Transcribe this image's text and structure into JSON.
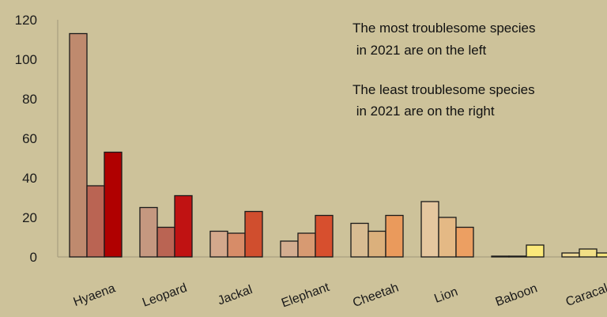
{
  "chart_data": {
    "type": "bar",
    "title": "",
    "xlabel": "",
    "ylabel": "",
    "ylim": [
      0,
      120
    ],
    "yticks": [
      0,
      20,
      40,
      60,
      80,
      100,
      120
    ],
    "grid": false,
    "legend": "none",
    "categories": [
      {
        "label": "Hyaena",
        "values": [
          113,
          36,
          53
        ],
        "colors": [
          "#bf8a6e",
          "#ba6453",
          "#b00000"
        ]
      },
      {
        "label": "Leopard",
        "values": [
          25,
          15,
          31
        ],
        "colors": [
          "#c59880",
          "#ba6453",
          "#c01212"
        ]
      },
      {
        "label": "Jackal",
        "values": [
          13,
          12,
          23
        ],
        "colors": [
          "#d3a88c",
          "#d78c68",
          "#d04e2e"
        ]
      },
      {
        "label": "Elephant",
        "values": [
          8,
          12,
          21
        ],
        "colors": [
          "#d3ad90",
          "#d79a72",
          "#d74f2e"
        ]
      },
      {
        "label": "Cheetah",
        "values": [
          17,
          13,
          21
        ],
        "colors": [
          "#d8bc92",
          "#dbb07c",
          "#ea9a5c"
        ]
      },
      {
        "label": "Lion",
        "values": [
          28,
          20,
          15
        ],
        "colors": [
          "#e5c79f",
          "#e4b985",
          "#ec9f62"
        ]
      },
      {
        "label": "Baboon",
        "values": [
          0,
          0,
          6
        ],
        "colors": [
          "#ebd59a",
          "#f0d67a",
          "#fbe97a"
        ]
      },
      {
        "label": "Caracal",
        "values": [
          2,
          4,
          2
        ],
        "colors": [
          "#eed996",
          "#f1df86",
          "#f5e47e"
        ]
      }
    ],
    "annotations": [
      [
        "The most troublesome species",
        " in 2021 are on the left"
      ],
      [
        "The least troublesome species",
        " in 2021 are on the right"
      ]
    ]
  }
}
